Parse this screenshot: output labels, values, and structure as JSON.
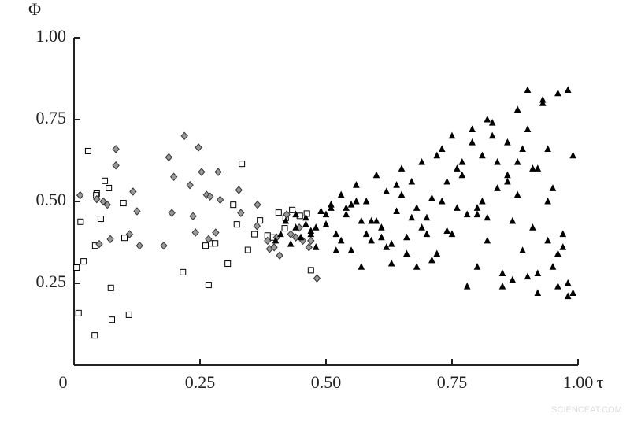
{
  "chart_data": {
    "type": "scatter",
    "xlabel": "τ",
    "ylabel": "Φ",
    "watermark": "SCIENCEAT.COM",
    "xlim": [
      0,
      1
    ],
    "ylim": [
      0,
      1
    ],
    "xticks": [
      0,
      0.25,
      {
        "value": 0.5,
        "label": "0.50"
      },
      0.75,
      {
        "value": 1,
        "label": "1.00"
      }
    ],
    "yticks": [
      0.25,
      {
        "value": 0.5,
        "label": "0.50"
      },
      0.75,
      {
        "value": 1,
        "label": "1.00"
      }
    ],
    "series": [
      {
        "marker": "square",
        "color": "#000000",
        "fill": "#ffffff",
        "x": [
          0.028,
          0.005,
          0.013,
          0.019,
          0.009,
          0.042,
          0.045,
          0.053,
          0.061,
          0.069,
          0.073,
          0.075,
          0.098,
          0.1,
          0.109,
          0.041,
          0.044,
          0.216,
          0.261,
          0.267,
          0.272,
          0.28,
          0.305,
          0.316,
          0.323,
          0.333,
          0.345,
          0.358,
          0.369,
          0.384,
          0.395,
          0.406,
          0.418,
          0.433,
          0.448,
          0.47,
          0.462,
          0.42
        ],
        "y": [
          0.654,
          0.298,
          0.438,
          0.317,
          0.159,
          0.365,
          0.524,
          0.447,
          0.563,
          0.541,
          0.236,
          0.139,
          0.495,
          0.389,
          0.154,
          0.091,
          0.519,
          0.284,
          0.365,
          0.245,
          0.372,
          0.372,
          0.31,
          0.49,
          0.43,
          0.615,
          0.352,
          0.4,
          0.442,
          0.396,
          0.39,
          0.466,
          0.418,
          0.474,
          0.456,
          0.29,
          0.463,
          0.45
        ]
      },
      {
        "marker": "diamond",
        "color": "#333333",
        "fill": "#999999",
        "x": [
          0.012,
          0.045,
          0.05,
          0.058,
          0.066,
          0.072,
          0.083,
          0.083,
          0.11,
          0.117,
          0.125,
          0.13,
          0.178,
          0.188,
          0.194,
          0.198,
          0.219,
          0.23,
          0.236,
          0.241,
          0.247,
          0.253,
          0.263,
          0.267,
          0.27,
          0.281,
          0.286,
          0.29,
          0.327,
          0.331,
          0.364,
          0.363,
          0.384,
          0.388,
          0.397,
          0.402,
          0.408,
          0.422,
          0.43,
          0.447,
          0.454,
          0.466,
          0.47,
          0.482,
          0.44
        ],
        "y": [
          0.519,
          0.507,
          0.37,
          0.5,
          0.49,
          0.385,
          0.66,
          0.61,
          0.4,
          0.53,
          0.47,
          0.365,
          0.365,
          0.635,
          0.465,
          0.575,
          0.7,
          0.55,
          0.455,
          0.405,
          0.665,
          0.59,
          0.52,
          0.385,
          0.515,
          0.405,
          0.59,
          0.505,
          0.535,
          0.465,
          0.49,
          0.425,
          0.38,
          0.355,
          0.36,
          0.39,
          0.335,
          0.46,
          0.4,
          0.42,
          0.38,
          0.36,
          0.38,
          0.265,
          0.39
        ]
      },
      {
        "marker": "triangle",
        "color": "#000000",
        "fill": "#000000",
        "x": [
          0.4,
          0.41,
          0.42,
          0.43,
          0.44,
          0.45,
          0.46,
          0.47,
          0.48,
          0.49,
          0.5,
          0.51,
          0.52,
          0.53,
          0.54,
          0.55,
          0.56,
          0.57,
          0.58,
          0.59,
          0.6,
          0.61,
          0.62,
          0.63,
          0.64,
          0.65,
          0.66,
          0.67,
          0.68,
          0.69,
          0.7,
          0.71,
          0.72,
          0.73,
          0.74,
          0.75,
          0.76,
          0.77,
          0.78,
          0.79,
          0.8,
          0.81,
          0.82,
          0.83,
          0.84,
          0.85,
          0.86,
          0.87,
          0.88,
          0.89,
          0.9,
          0.91,
          0.92,
          0.93,
          0.94,
          0.95,
          0.96,
          0.97,
          0.98,
          0.99,
          0.44,
          0.47,
          0.5,
          0.53,
          0.56,
          0.59,
          0.62,
          0.65,
          0.68,
          0.71,
          0.74,
          0.77,
          0.8,
          0.83,
          0.86,
          0.89,
          0.92,
          0.95,
          0.98,
          0.46,
          0.52,
          0.58,
          0.64,
          0.7,
          0.76,
          0.82,
          0.88,
          0.94,
          0.97,
          0.55,
          0.61,
          0.67,
          0.73,
          0.79,
          0.85,
          0.91,
          0.96,
          0.78,
          0.84,
          0.9,
          0.93,
          0.99,
          0.87,
          0.81,
          0.75,
          0.69,
          0.63,
          0.57,
          0.51,
          0.92,
          0.94,
          0.96,
          0.98,
          0.8,
          0.82,
          0.86,
          0.88,
          0.9,
          0.72,
          0.66,
          0.6,
          0.54,
          0.48
        ],
        "y": [
          0.38,
          0.4,
          0.44,
          0.37,
          0.42,
          0.39,
          0.45,
          0.41,
          0.36,
          0.47,
          0.43,
          0.49,
          0.4,
          0.52,
          0.46,
          0.35,
          0.55,
          0.44,
          0.5,
          0.38,
          0.58,
          0.42,
          0.53,
          0.31,
          0.47,
          0.6,
          0.39,
          0.56,
          0.3,
          0.62,
          0.45,
          0.51,
          0.34,
          0.66,
          0.41,
          0.7,
          0.48,
          0.58,
          0.24,
          0.72,
          0.46,
          0.64,
          0.38,
          0.74,
          0.54,
          0.28,
          0.68,
          0.44,
          0.78,
          0.35,
          0.84,
          0.6,
          0.22,
          0.8,
          0.5,
          0.3,
          0.83,
          0.4,
          0.25,
          0.64,
          0.46,
          0.4,
          0.46,
          0.38,
          0.5,
          0.44,
          0.36,
          0.52,
          0.48,
          0.32,
          0.56,
          0.62,
          0.3,
          0.7,
          0.58,
          0.66,
          0.28,
          0.54,
          0.21,
          0.43,
          0.35,
          0.4,
          0.55,
          0.4,
          0.6,
          0.45,
          0.52,
          0.38,
          0.36,
          0.49,
          0.39,
          0.45,
          0.5,
          0.68,
          0.24,
          0.42,
          0.34,
          0.46,
          0.62,
          0.72,
          0.81,
          0.22,
          0.26,
          0.5,
          0.4,
          0.42,
          0.37,
          0.3,
          0.48,
          0.6,
          0.66,
          0.24,
          0.84,
          0.48,
          0.75,
          0.56,
          0.62,
          0.27,
          0.64,
          0.34,
          0.44,
          0.48,
          0.42
        ]
      }
    ]
  }
}
